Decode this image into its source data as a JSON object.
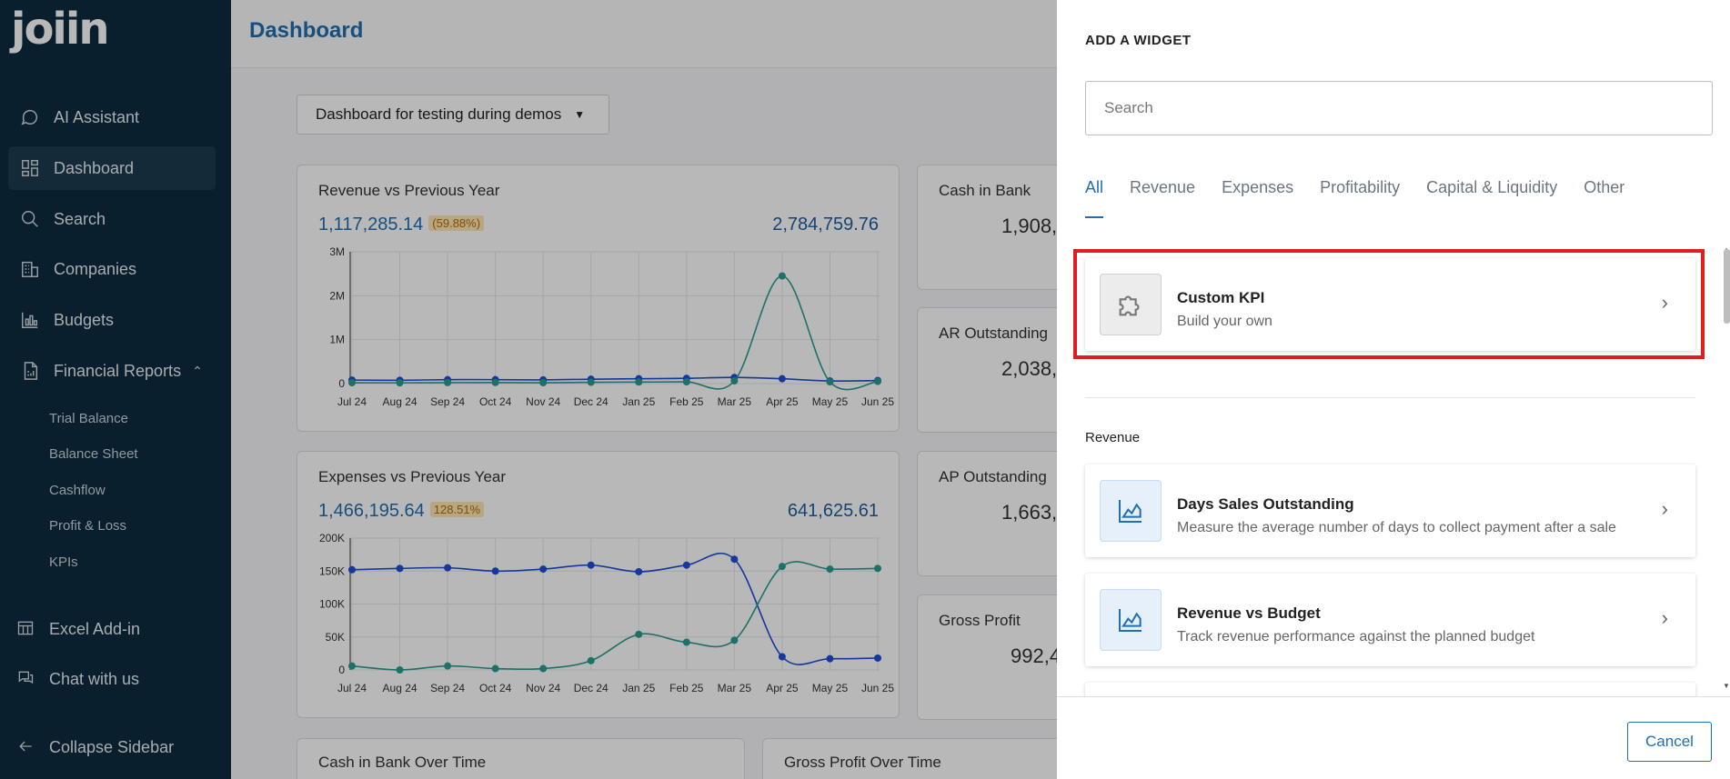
{
  "sidebar": {
    "logo": "joiin",
    "nav": [
      {
        "label": "AI Assistant",
        "icon": "chat-bubble-icon"
      },
      {
        "label": "Dashboard",
        "icon": "dashboard-grid-icon"
      },
      {
        "label": "Search",
        "icon": "search-icon"
      },
      {
        "label": "Companies",
        "icon": "building-icon"
      },
      {
        "label": "Budgets",
        "icon": "bar-chart-icon"
      },
      {
        "label": "Financial Reports",
        "icon": "document-icon"
      }
    ],
    "sub_items": [
      "Trial Balance",
      "Balance Sheet",
      "Cashflow",
      "Profit & Loss",
      "KPIs"
    ],
    "bottom": [
      {
        "label": "Excel Add-in",
        "icon": "excel-icon"
      },
      {
        "label": "Chat with us",
        "icon": "chat-icon"
      },
      {
        "label": "Collapse Sidebar",
        "icon": "arrow-left-icon"
      }
    ]
  },
  "main": {
    "title": "Dashboard",
    "dashboard_select": "Dashboard for testing during demos",
    "cards": {
      "revenue": {
        "title": "Revenue vs Previous Year",
        "value": "1,117,285.14",
        "pct": "(59.88%)",
        "prev": "2,784,759.76"
      },
      "expenses": {
        "title": "Expenses vs Previous Year",
        "value": "1,466,195.64",
        "pct": "128.51%",
        "prev": "641,625.61"
      },
      "cash": {
        "title": "Cash in Bank",
        "value": "1,908,"
      },
      "ar": {
        "title": "AR Outstanding",
        "value": "2,038,"
      },
      "ap": {
        "title": "AP Outstanding",
        "value": "1,663,"
      },
      "gp": {
        "title": "Gross Profit",
        "value": "992,4"
      },
      "cash_time": {
        "title": "Cash in Bank Over Time"
      },
      "gp_time": {
        "title": "Gross Profit Over Time"
      }
    }
  },
  "chart_data": [
    {
      "type": "line",
      "categories": [
        "Jul 24",
        "Aug 24",
        "Sep 24",
        "Oct 24",
        "Nov 24",
        "Dec 24",
        "Jan 25",
        "Feb 25",
        "Mar 25",
        "Apr 25",
        "May 25",
        "Jun 25"
      ],
      "series": [
        {
          "values": [
            80000,
            75000,
            90000,
            90000,
            85000,
            100000,
            110000,
            120000,
            140000,
            110000,
            60000,
            70000
          ],
          "color": "#1d4ed8"
        },
        {
          "values": [
            20000,
            18000,
            22000,
            25000,
            20000,
            30000,
            35000,
            40000,
            60000,
            2450000,
            40000,
            50000
          ],
          "color": "#2a9d8f"
        }
      ],
      "yticks": [
        "0",
        "1M",
        "2M",
        "3M"
      ],
      "ylim": [
        0,
        3000000
      ]
    },
    {
      "type": "line",
      "categories": [
        "Jul 24",
        "Aug 24",
        "Sep 24",
        "Oct 24",
        "Nov 24",
        "Dec 24",
        "Jan 25",
        "Feb 25",
        "Mar 25",
        "Apr 25",
        "May 25",
        "Jun 25"
      ],
      "series": [
        {
          "values": [
            152000,
            154000,
            155000,
            150000,
            153000,
            159000,
            149000,
            159000,
            168000,
            20000,
            17000,
            18000
          ],
          "color": "#1d4ed8"
        },
        {
          "values": [
            6000,
            0,
            6000,
            2000,
            2000,
            14000,
            54000,
            42000,
            45000,
            157000,
            153000,
            154000
          ],
          "color": "#2a9d8f"
        }
      ],
      "yticks": [
        "0",
        "50K",
        "100K",
        "150K",
        "200K"
      ],
      "ylim": [
        0,
        200000
      ]
    }
  ],
  "drawer": {
    "title": "ADD A WIDGET",
    "search_placeholder": "Search",
    "tabs": [
      "All",
      "Revenue",
      "Expenses",
      "Profitability",
      "Capital & Liquidity",
      "Other"
    ],
    "custom": {
      "title": "Custom KPI",
      "desc": "Build your own",
      "icon": "puzzle-icon"
    },
    "section": "Revenue",
    "widgets": [
      {
        "title": "Days Sales Outstanding",
        "desc": "Measure the average number of days to collect payment after a sale",
        "icon": "area-chart-icon"
      },
      {
        "title": "Revenue vs Budget",
        "desc": "Track revenue performance against the planned budget",
        "icon": "area-chart-icon"
      }
    ],
    "cancel": "Cancel"
  }
}
